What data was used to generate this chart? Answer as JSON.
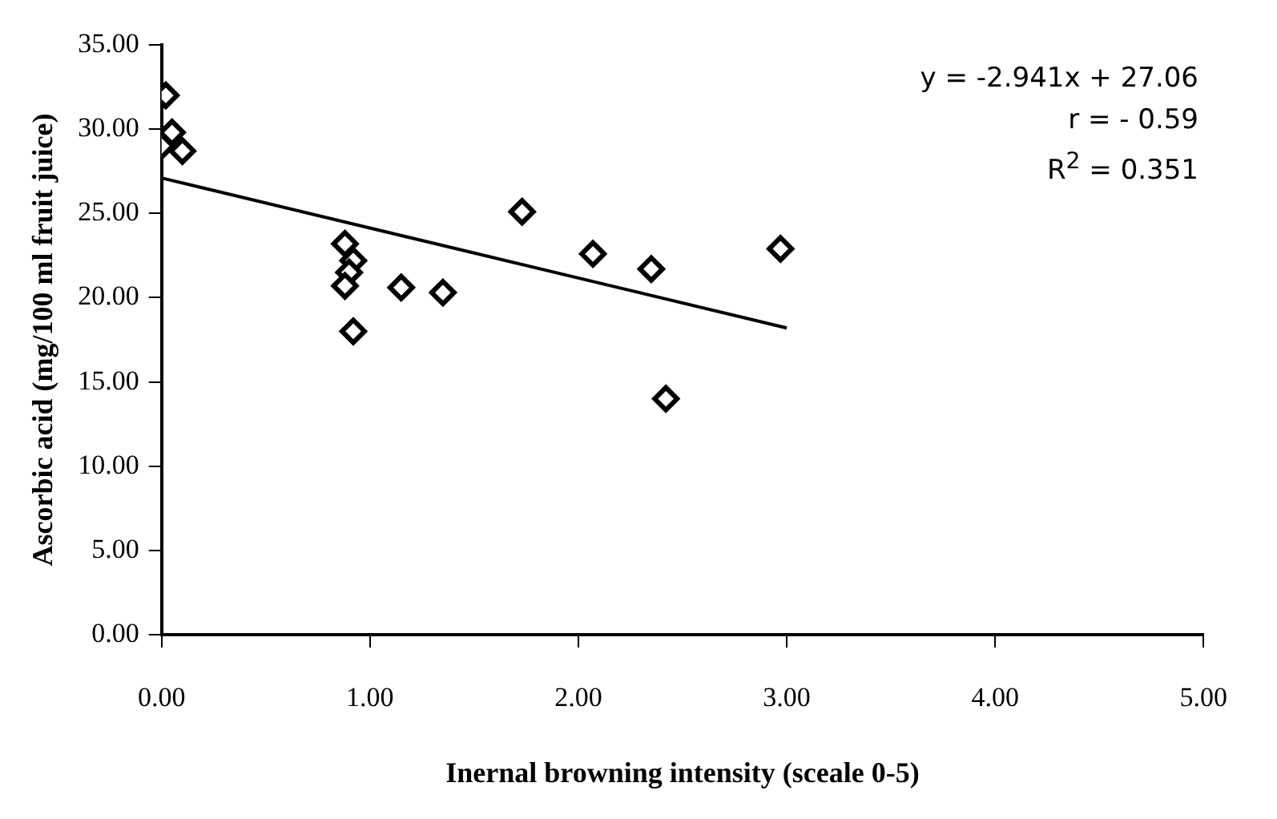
{
  "chart_data": {
    "type": "scatter",
    "xlabel": "Inernal browning intensity (sceale 0-5)",
    "ylabel": "Ascorbic acid (mg/100 ml fruit juice)",
    "annotations": [
      "y = -2.941x + 27.06",
      "r = - 0.59",
      "R$^{2}$ = 0.351"
    ],
    "series": [
      {
        "color": "#000000",
        "marker": "diamond",
        "x": [
          0.02,
          0.05,
          0.0,
          0.1,
          0.88,
          0.92,
          0.9,
          0.88,
          0.92,
          1.15,
          1.35,
          1.73,
          2.07,
          2.35,
          2.42,
          2.97
        ],
        "values": [
          32.0,
          29.8,
          29.0,
          28.7,
          23.2,
          22.2,
          21.5,
          20.7,
          18.0,
          20.6,
          20.3,
          25.1,
          22.6,
          21.7,
          14.0,
          22.9
        ]
      },
      {
        "type": "line",
        "color": "#000000",
        "marker": "none",
        "x": [
          0,
          3
        ],
        "values": [
          27.1,
          18.2
        ]
      }
    ],
    "xlim": [
      0,
      5
    ],
    "xticks": [
      {
        "value": 0,
        "label": "0.00"
      },
      {
        "value": 1,
        "label": "1.00"
      },
      {
        "value": 2,
        "label": "2.00"
      },
      {
        "value": 3,
        "label": "3.00"
      },
      {
        "value": 4,
        "label": "4.00"
      },
      {
        "value": 5,
        "label": "5.00"
      }
    ],
    "ylim": [
      0,
      35
    ],
    "yticks": [
      {
        "value": 0,
        "label": "0.00"
      },
      {
        "value": 5,
        "label": "5.00"
      },
      {
        "value": 10,
        "label": "10.00"
      },
      {
        "value": 15,
        "label": "15.00"
      },
      {
        "value": 20,
        "label": "20.00"
      },
      {
        "value": 25,
        "label": "25.00"
      },
      {
        "value": 30,
        "label": "30.00"
      },
      {
        "value": 35,
        "label": "35.00"
      }
    ],
    "grid": false,
    "legend": false
  }
}
